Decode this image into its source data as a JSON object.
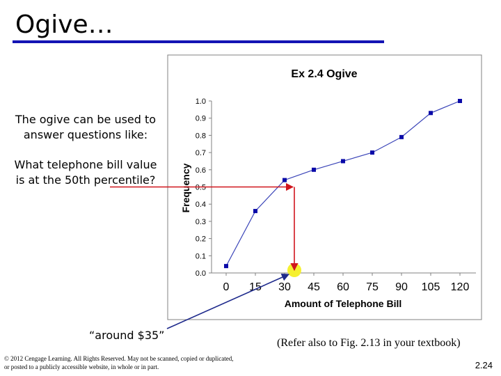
{
  "slide": {
    "title": "Ogive…",
    "question_intro": "The ogive can be used to answer questions like:",
    "question": "What telephone bill value is at the 50th percentile?",
    "answer": "“around $35”",
    "reference": "(Refer also to Fig. 2.13 in your textbook)",
    "copyright": "© 2012 Cengage Learning. All Rights Reserved. May not be scanned, copied or duplicated, or posted to a publicly accessible website, in whole or in part.",
    "page_number": "2.24"
  },
  "colors": {
    "title_rule": "#1414b4",
    "series_line": "#3a44b8",
    "marker": "#0a0aa8",
    "arrow": "#d0141c",
    "pointer": "#1e2a8c",
    "highlight": "#f5f030"
  },
  "chart_data": {
    "type": "line",
    "title": "Ex 2.4 Ogive",
    "xlabel": "Amount of Telephone Bill",
    "ylabel": "Frequency",
    "x": [
      0,
      15,
      30,
      45,
      60,
      75,
      90,
      105,
      120
    ],
    "x_tick_labels": [
      "0",
      "15",
      "30",
      "45",
      "60",
      "75",
      "90",
      "105",
      "120"
    ],
    "y_ticks": [
      "0.0",
      "0.1",
      "0.2",
      "0.3",
      "0.4",
      "0.5",
      "0.6",
      "0.7",
      "0.8",
      "0.9",
      "1.0"
    ],
    "ylim": [
      0,
      1
    ],
    "series": [
      {
        "values": [
          0.04,
          0.36,
          0.54,
          0.6,
          0.65,
          0.7,
          0.79,
          0.93,
          1.0
        ]
      }
    ],
    "annotation": {
      "percentile": 0.5,
      "x_value": 35
    },
    "grid": false,
    "legend": "none"
  }
}
